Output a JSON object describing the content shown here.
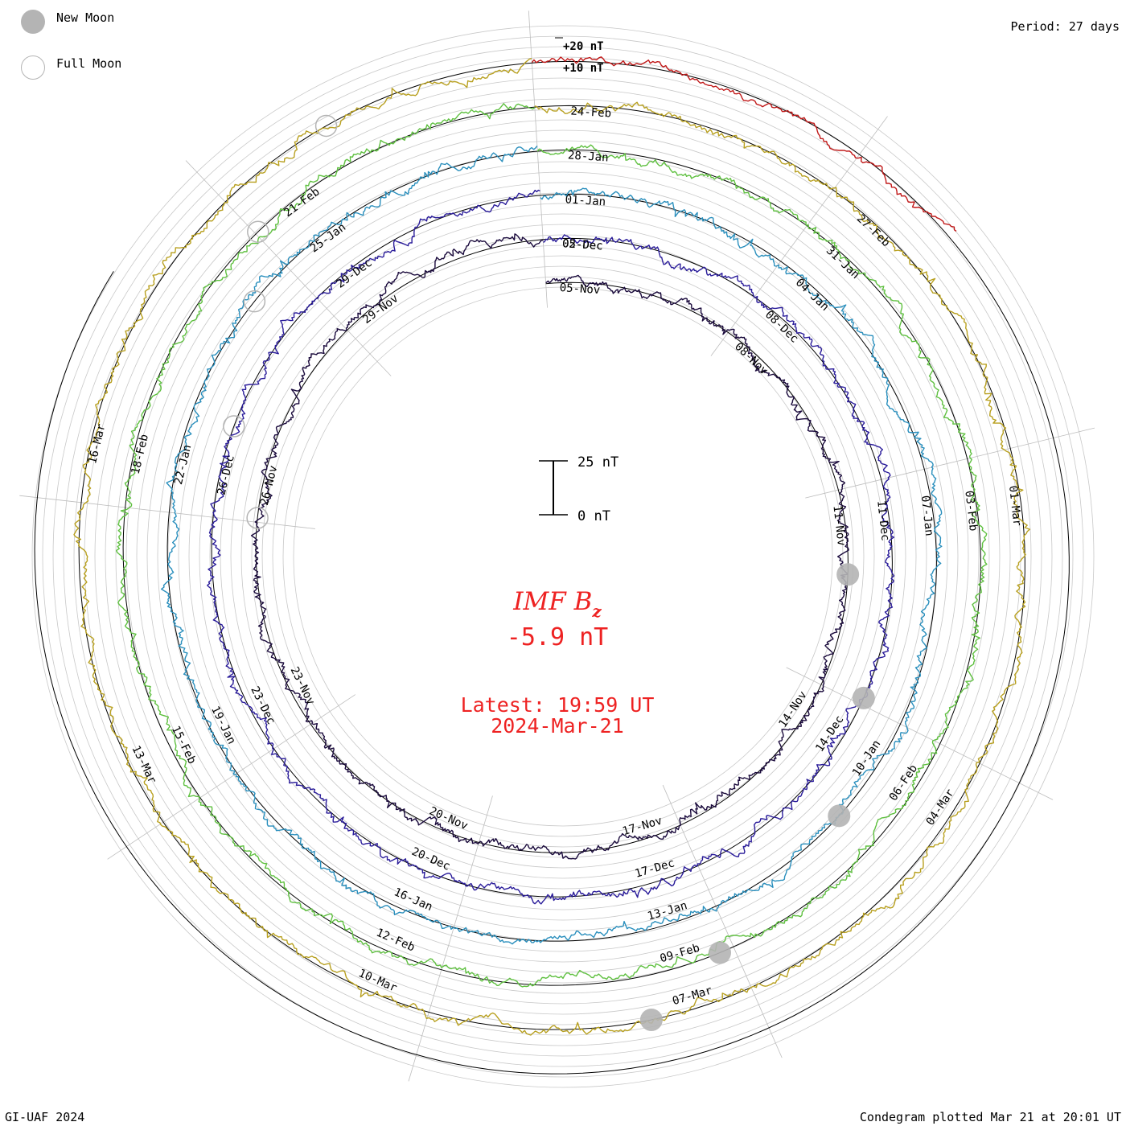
{
  "header": {
    "period": "Period: 27 days"
  },
  "legend": {
    "new_moon": "New Moon",
    "full_moon": "Full Moon"
  },
  "footer": {
    "credit": "GI-UAF 2024",
    "plotted": "Condegram plotted Mar 21 at 20:01 UT"
  },
  "center": {
    "quantity": "IMF B",
    "subscript": "z",
    "value": "-5.9 nT",
    "latest": "Latest: 19:59 UT",
    "date": "2024-Mar-21"
  },
  "scale_bar": {
    "top_label": "25 nT",
    "bottom_label": "0 nT"
  },
  "colors": {
    "accent": "#ee2222",
    "moon": "#b4b4b4",
    "grid": "#bbbbbb"
  },
  "chart_data": {
    "type": "line",
    "title": "IMF Bz condegram",
    "period_days": 27,
    "unit": "nT",
    "latest_value": -5.9,
    "scale_labels": [
      "+20 nT",
      "+10 nT"
    ],
    "rotations": [
      {
        "name": "rotation-1",
        "color": "#1a0a3c",
        "dates": [
          "05-Nov",
          "08-Nov",
          "11-Nov",
          "14-Nov",
          "17-Nov",
          "20-Nov",
          "23-Nov",
          "26-Nov",
          "29-Nov",
          "02-Dec"
        ]
      },
      {
        "name": "rotation-2",
        "color": "#2a1c9a",
        "dates": [
          "05-Dec",
          "08-Dec",
          "11-Dec",
          "14-Dec",
          "17-Dec",
          "20-Dec",
          "23-Dec",
          "26-Dec",
          "29-Dec"
        ]
      },
      {
        "name": "rotation-3",
        "color": "#2a8fbd",
        "dates": [
          "01-Jan",
          "04-Jan",
          "07-Jan",
          "10-Jan",
          "13-Jan",
          "16-Jan",
          "19-Jan",
          "22-Jan",
          "25-Jan"
        ]
      },
      {
        "name": "rotation-4",
        "color": "#5fc040",
        "dates": [
          "28-Jan",
          "31-Jan",
          "03-Feb",
          "06-Feb",
          "09-Feb",
          "12-Feb",
          "15-Feb",
          "18-Feb",
          "21-Feb"
        ]
      },
      {
        "name": "rotation-5",
        "color": "#b8a020",
        "dates": [
          "24-Feb",
          "27-Feb",
          "01-Mar",
          "04-Mar",
          "07-Mar",
          "10-Mar",
          "13-Mar",
          "16-Mar"
        ]
      },
      {
        "name": "rotation-6",
        "color": "#c01818",
        "dates": []
      }
    ]
  }
}
